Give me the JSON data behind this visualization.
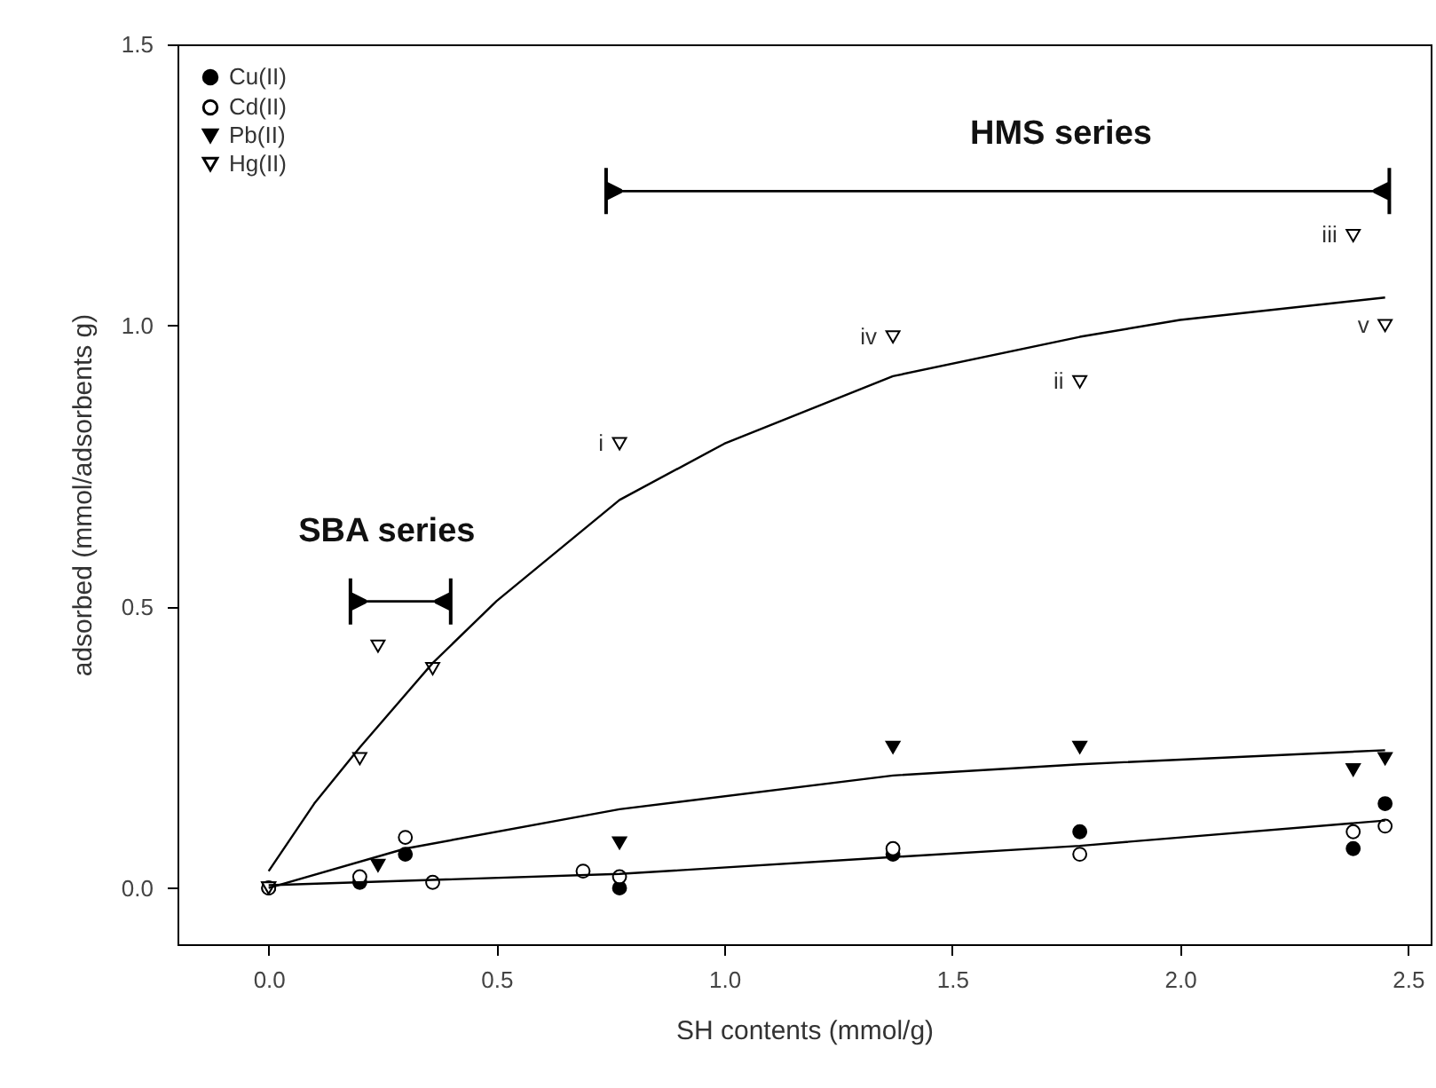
{
  "chart_data": {
    "type": "scatter",
    "xlabel": "SH contents (mmol/g)",
    "ylabel": "adsorbed (mmol/adsorbents g)",
    "xlim": [
      -0.2,
      2.55
    ],
    "ylim": [
      -0.1,
      1.5
    ],
    "xticks": [
      {
        "value": 0,
        "label": "0.0"
      },
      0.5,
      {
        "value": 1,
        "label": "1.0"
      },
      1.5,
      {
        "value": 2,
        "label": "2.0"
      },
      2.5
    ],
    "yticks": [
      {
        "value": 0,
        "label": "0.0"
      },
      0.5,
      {
        "value": 1,
        "label": "1.0"
      },
      1.5
    ],
    "grid": false,
    "legend": "top left",
    "series": [
      {
        "name": "Cu(II)",
        "color": "#000000",
        "marker": "circle",
        "x": [
          0,
          0.2,
          0.3,
          0.77,
          1.37,
          1.78,
          2.38,
          2.45
        ],
        "values": [
          0,
          0.01,
          0.06,
          0.0,
          0.06,
          0.1,
          0.07,
          0.15
        ]
      },
      {
        "name": "Cd(II)",
        "color": "#000000",
        "marker": "circle-open",
        "x": [
          0,
          0.2,
          0.3,
          0.36,
          0.69,
          0.77,
          1.37,
          1.78,
          2.38,
          2.45
        ],
        "values": [
          0,
          0.02,
          0.09,
          0.01,
          0.03,
          0.02,
          0.07,
          0.06,
          0.1,
          0.11
        ]
      },
      {
        "name": "Pb(II)",
        "color": "#000000",
        "marker": "triangle",
        "x": [
          0,
          0.24,
          0.77,
          1.37,
          1.78,
          2.38,
          2.45
        ],
        "values": [
          0,
          0.04,
          0.08,
          0.25,
          0.25,
          0.21,
          0.23
        ]
      },
      {
        "name": "Hg(II)",
        "color": "#000000",
        "marker": "triangle-open",
        "x": [
          0,
          0.2,
          0.24,
          0.36,
          0.77,
          1.37,
          1.78,
          2.38,
          2.45
        ],
        "values": [
          0,
          0.23,
          0.43,
          0.39,
          0.79,
          0.98,
          0.9,
          1.16,
          1.0
        ]
      },
      {
        "type": "line",
        "color": "#000000",
        "marker": "none",
        "x": [
          0,
          0.1,
          0.2,
          0.36,
          0.5,
          0.77,
          1.0,
          1.37,
          1.78,
          2.0,
          2.45
        ],
        "values": [
          0.03,
          0.15,
          0.25,
          0.4,
          0.51,
          0.69,
          0.79,
          0.91,
          0.98,
          1.01,
          1.05
        ]
      },
      {
        "type": "line",
        "color": "#000000",
        "marker": "none",
        "x": [
          0,
          0.3,
          0.77,
          1.37,
          1.78,
          2.45
        ],
        "values": [
          0,
          0.07,
          0.14,
          0.2,
          0.22,
          0.245
        ]
      },
      {
        "type": "line",
        "color": "#000000",
        "marker": "none",
        "x": [
          0,
          0.77,
          1.37,
          1.78,
          2.45
        ],
        "values": [
          0.005,
          0.025,
          0.055,
          0.075,
          0.12
        ]
      }
    ],
    "annotations": [
      "HMS series",
      "SBA series",
      {
        "text": "i",
        "x": 0.77,
        "y": 0.79
      },
      {
        "text": "iv",
        "x": 1.37,
        "y": 0.98
      },
      {
        "text": "ii",
        "x": 1.78,
        "y": 0.9
      },
      {
        "text": "iii",
        "x": 2.38,
        "y": 1.16
      },
      {
        "text": "v",
        "x": 2.45,
        "y": 1.0
      }
    ]
  }
}
